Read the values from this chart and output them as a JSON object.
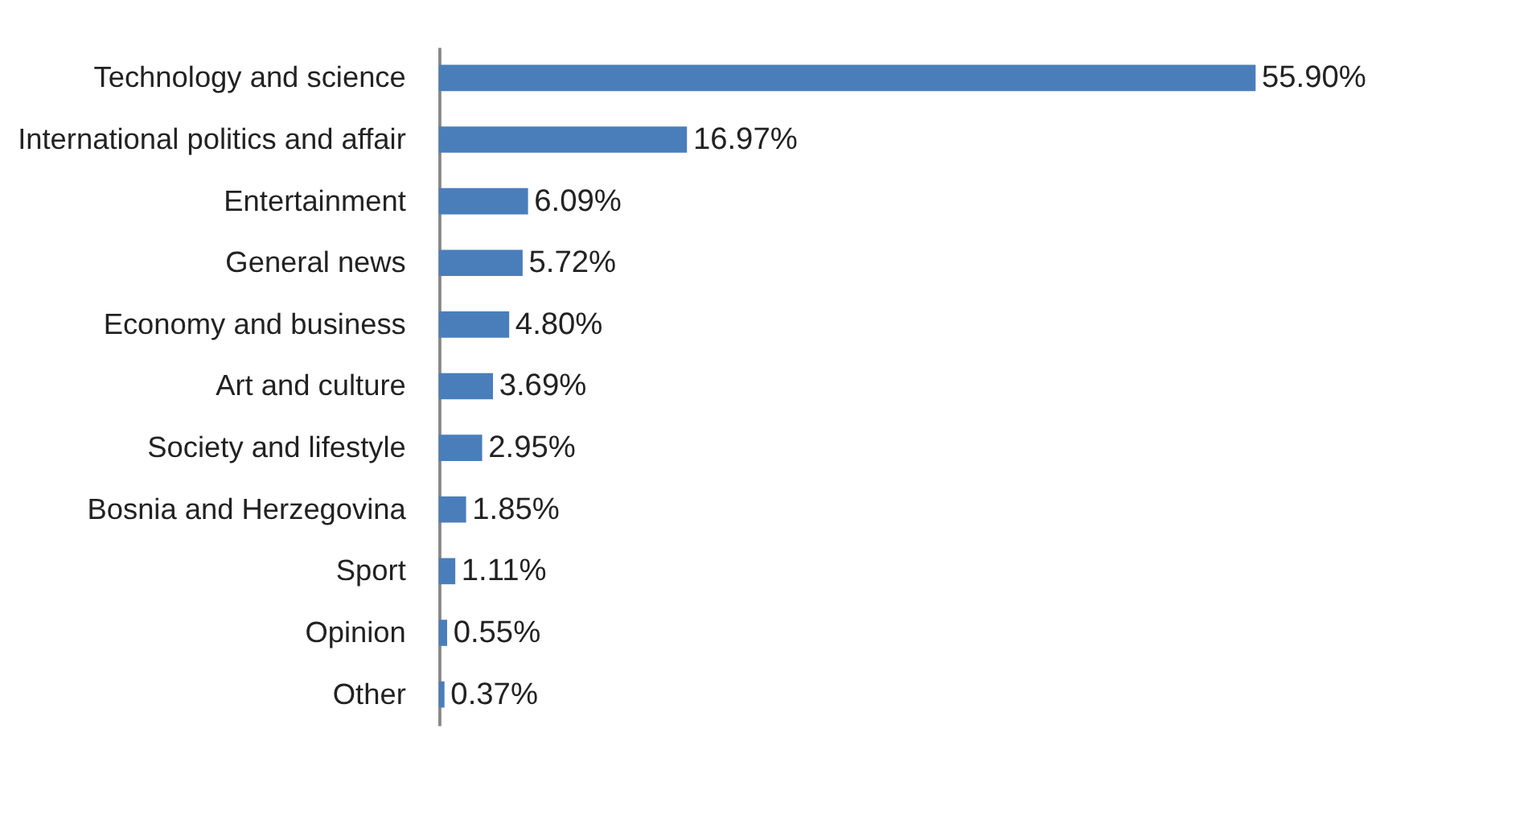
{
  "chart_data": {
    "type": "bar",
    "orientation": "horizontal",
    "categories": [
      "Technology and science",
      "International politics and affair",
      "Entertainment",
      "General news",
      "Economy and business",
      "Art and culture",
      "Society and lifestyle",
      "Bosnia and Herzegovina",
      "Sport",
      "Opinion",
      "Other"
    ],
    "values": [
      55.9,
      16.97,
      6.09,
      5.72,
      4.8,
      3.69,
      2.95,
      1.85,
      1.11,
      0.55,
      0.37
    ],
    "value_labels": [
      "55.90%",
      "16.97%",
      "6.09%",
      "5.72%",
      "4.80%",
      "3.69%",
      "2.95%",
      "1.85%",
      "1.11%",
      "0.55%",
      "0.37%"
    ],
    "color": "#4a7ebb",
    "grid": false
  }
}
